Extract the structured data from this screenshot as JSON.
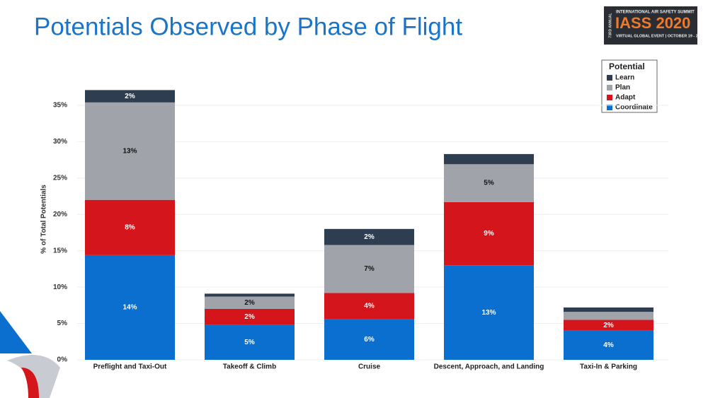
{
  "chart_data": {
    "type": "stacked_bar",
    "title": "Potentials Observed by Phase of Flight",
    "y_label": "% of Total Potentials",
    "legend_title": "Potential",
    "legend": "top-right",
    "grid": true,
    "categories": [
      "Preflight and Taxi-Out",
      "Takeoff & Climb",
      "Cruise",
      "Descent, Approach, and Landing",
      "Taxi-In & Parking"
    ],
    "series": [
      {
        "name": "Coordinate",
        "color": "#0b6fcf",
        "values": [
          14.4,
          4.8,
          5.6,
          13.0,
          4.0
        ],
        "value_labels": [
          "14%",
          "5%",
          "6%",
          "13%",
          "4%"
        ]
      },
      {
        "name": "Adapt",
        "color": "#d4161c",
        "values": [
          7.6,
          2.2,
          3.6,
          8.7,
          1.5
        ],
        "value_labels": [
          "8%",
          "2%",
          "4%",
          "9%",
          "2%"
        ]
      },
      {
        "name": "Plan",
        "color": "#a0a4aa",
        "values": [
          13.4,
          1.7,
          6.6,
          5.2,
          1.1
        ],
        "value_labels": [
          "13%",
          "2%",
          "7%",
          "5%",
          null
        ]
      },
      {
        "name": "Learn",
        "color": "#2e3e50",
        "values": [
          1.7,
          0.4,
          2.2,
          1.4,
          0.6
        ],
        "value_labels": [
          "2%",
          null,
          "2%",
          null,
          null
        ]
      }
    ],
    "ylim": [
      0,
      38.5
    ],
    "yticks": [
      {
        "value": 0,
        "label": "0%"
      },
      {
        "value": 5,
        "label": "5%"
      },
      {
        "value": 10,
        "label": "10%"
      },
      {
        "value": 15,
        "label": "15%"
      },
      {
        "value": 20,
        "label": "20%"
      },
      {
        "value": 25,
        "label": "25%"
      },
      {
        "value": 30,
        "label": "30%"
      },
      {
        "value": 35,
        "label": "35%"
      }
    ]
  },
  "logo": {
    "annual": "73RD ANNUAL",
    "org": "INTERNATIONAL AIR SAFETY SUMMIT",
    "name": "IASS 2020",
    "event": "VIRTUAL GLOBAL EVENT | OCTOBER 19 - 22"
  }
}
